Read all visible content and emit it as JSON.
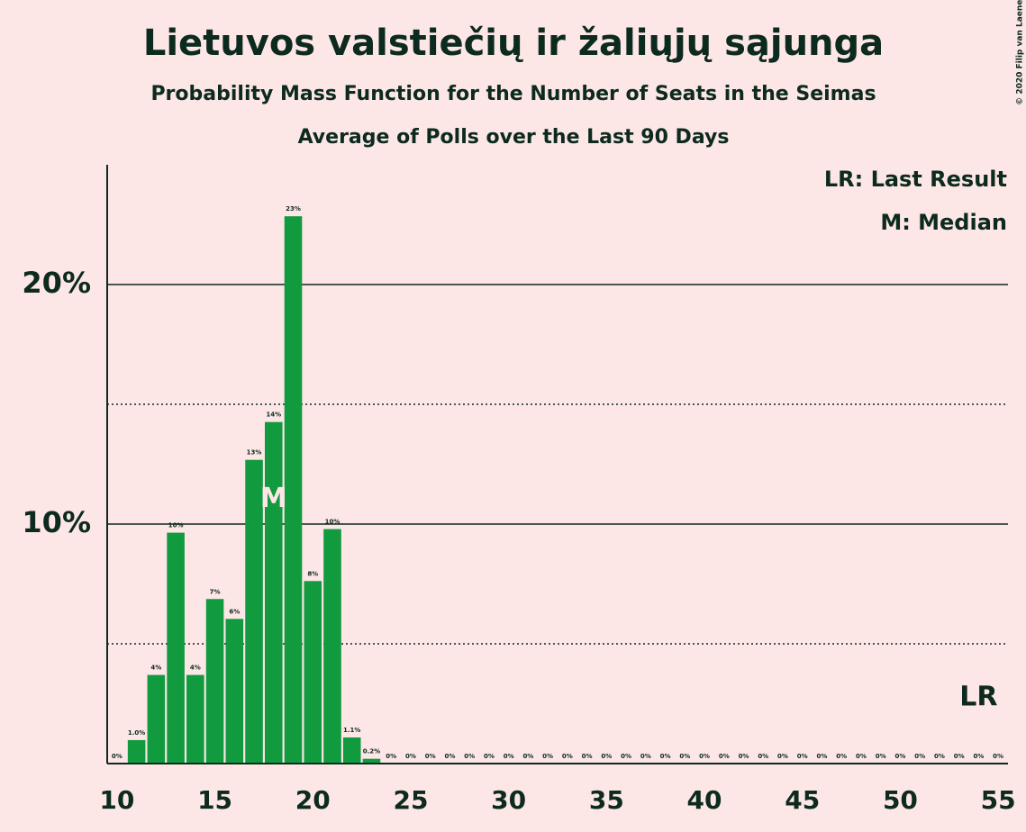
{
  "chart_data": {
    "type": "bar",
    "title": "Lietuvos valstiečių ir žaliųjų sąjunga",
    "subtitle": "Probability Mass Function for the Number of Seats in the Seimas",
    "subtitle2": "Average of Polls over the Last 90 Days",
    "copyright": "© 2020 Filip van Laenen",
    "legend": [
      "LR: Last Result",
      "M: Median"
    ],
    "x": [
      10,
      11,
      12,
      13,
      14,
      15,
      16,
      17,
      18,
      19,
      20,
      21,
      22,
      23,
      24,
      25,
      26,
      27,
      28,
      29,
      30,
      31,
      32,
      33,
      34,
      35,
      36,
      37,
      38,
      39,
      40,
      41,
      42,
      43,
      44,
      45,
      46,
      47,
      48,
      49,
      50,
      51,
      52,
      53,
      54,
      55
    ],
    "values": [
      0,
      0.98,
      3.7,
      9.64,
      3.7,
      6.87,
      6.04,
      12.68,
      14.26,
      22.85,
      7.62,
      9.79,
      1.09,
      0.2,
      0,
      0,
      0,
      0,
      0,
      0,
      0,
      0,
      0,
      0,
      0,
      0,
      0,
      0,
      0,
      0,
      0,
      0,
      0,
      0,
      0,
      0,
      0,
      0,
      0,
      0,
      0,
      0,
      0,
      0,
      0,
      0
    ],
    "value_labels": [
      "0%",
      "1.0%",
      "4%",
      "10%",
      "4%",
      "7%",
      "6%",
      "13%",
      "14%",
      "23%",
      "8%",
      "10%",
      "1.1%",
      "0.2%",
      "0%",
      "0%",
      "0%",
      "0%",
      "0%",
      "0%",
      "0%",
      "0%",
      "0%",
      "0%",
      "0%",
      "0%",
      "0%",
      "0%",
      "0%",
      "0%",
      "0%",
      "0%",
      "0%",
      "0%",
      "0%",
      "0%",
      "0%",
      "0%",
      "0%",
      "0%",
      "0%",
      "0%",
      "0%",
      "0%",
      "0%",
      "0%"
    ],
    "color": "#129a3f",
    "xlim": [
      9.5,
      55.5
    ],
    "xticks": [
      10,
      15,
      20,
      25,
      30,
      35,
      40,
      45,
      50,
      55
    ],
    "ylim": [
      0,
      25
    ],
    "yticks": [
      {
        "value": 10,
        "label": "10%"
      },
      {
        "value": 20,
        "label": "20%"
      }
    ],
    "minor_yticks": [
      5,
      15
    ],
    "grid": true,
    "median": {
      "x": 18,
      "label": "M"
    },
    "last_result": {
      "x": 54,
      "label": "LR"
    }
  }
}
